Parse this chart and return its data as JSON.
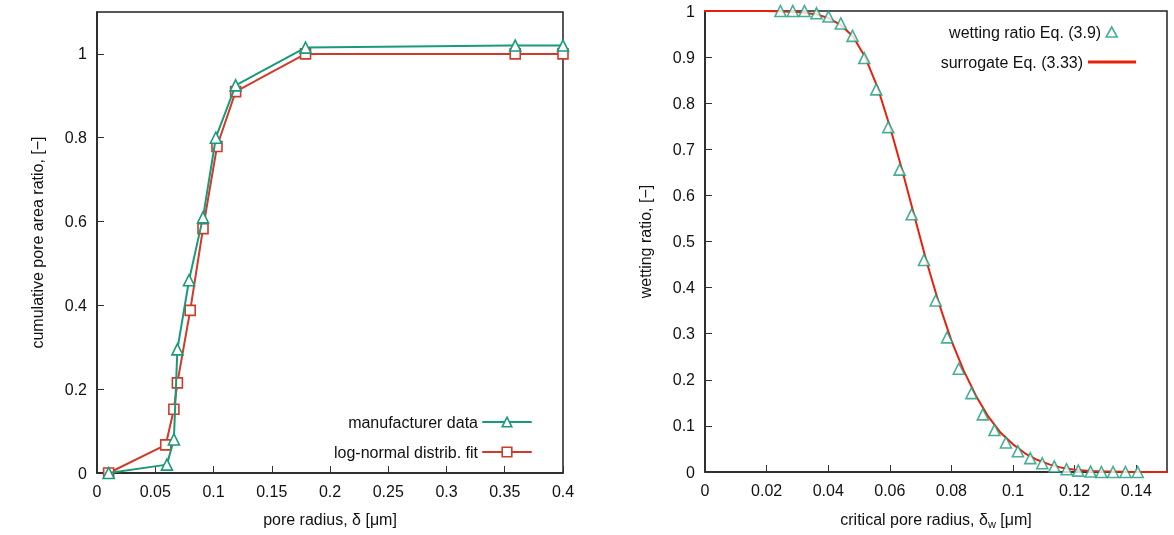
{
  "chart_data": [
    {
      "type": "line",
      "xlabel": "pore radius, δ [μm]",
      "ylabel": "cumulative pore area ratio, [−]",
      "xlim": [
        0,
        0.4
      ],
      "xticks": [
        0,
        0.05,
        0.1,
        0.15,
        0.2,
        0.25,
        0.3,
        0.35,
        0.4
      ],
      "ylim": [
        0,
        1.1
      ],
      "yticks": [
        0,
        0.2,
        0.4,
        0.6,
        0.8,
        1
      ],
      "grid": false,
      "legend": "bottom right",
      "series": [
        {
          "name": "manufacturer data",
          "color": "#1a9a7a",
          "marker": "triangle",
          "x": [
            0.01,
            0.06,
            0.066,
            0.069,
            0.079,
            0.091,
            0.102,
            0.119,
            0.179,
            0.359,
            0.4
          ],
          "values": [
            0,
            0.02,
            0.08,
            0.295,
            0.46,
            0.61,
            0.8,
            0.925,
            1.015,
            1.02,
            1.02
          ]
        },
        {
          "name": "log-normal distrib. fit",
          "color": "#d03a2a",
          "marker": "square",
          "x": [
            0.01,
            0.059,
            0.066,
            0.069,
            0.08,
            0.091,
            0.103,
            0.119,
            0.179,
            0.359,
            0.4
          ],
          "values": [
            0,
            0.067,
            0.152,
            0.215,
            0.388,
            0.583,
            0.779,
            0.91,
            1,
            1,
            1
          ]
        }
      ]
    },
    {
      "type": "scatter",
      "xlabel": "critical pore radius, δ$_{w}$ [μm]",
      "ylabel": "wetting ratio, [−]",
      "xlim": [
        0,
        0.15
      ],
      "xticks": [
        0,
        0.02,
        0.04,
        0.06,
        0.08,
        0.1,
        0.12,
        0.14
      ],
      "ylim": [
        0,
        1
      ],
      "yticks": [
        0,
        0.1,
        0.2,
        0.3,
        0.4,
        0.5,
        0.6,
        0.7,
        0.8,
        0.9,
        1
      ],
      "grid": false,
      "legend": "top right",
      "series": [
        {
          "name": "wetting ratio Eq. (3.9)",
          "color": "#1a9a7a",
          "marker": "triangle",
          "x": [
            0.0245,
            0.0285,
            0.0323,
            0.0362,
            0.0401,
            0.0441,
            0.0479,
            0.0517,
            0.0556,
            0.0595,
            0.0632,
            0.0671,
            0.0711,
            0.0749,
            0.0786,
            0.0824,
            0.0865,
            0.0902,
            0.094,
            0.0977,
            0.1016,
            0.1056,
            0.1095,
            0.1134,
            0.1174,
            0.1212,
            0.1252,
            0.1287,
            0.1325,
            0.1365,
            0.1405
          ],
          "values": [
            1,
            1,
            1,
            0.995,
            0.988,
            0.973,
            0.946,
            0.898,
            0.83,
            0.748,
            0.656,
            0.559,
            0.46,
            0.372,
            0.292,
            0.224,
            0.171,
            0.125,
            0.091,
            0.064,
            0.045,
            0.03,
            0.019,
            0.012,
            0.006,
            0.003,
            0.001,
            0,
            0,
            0,
            0
          ]
        },
        {
          "name": "surrogate Eq. (3.33)",
          "type": "line",
          "color": "#e8200c",
          "marker": "none",
          "x": [
            0,
            0.02,
            0.03,
            0.036,
            0.04,
            0.044,
            0.048,
            0.052,
            0.056,
            0.06,
            0.064,
            0.068,
            0.072,
            0.076,
            0.08,
            0.084,
            0.088,
            0.092,
            0.096,
            0.1,
            0.104,
            0.108,
            0.112,
            0.116,
            0.12,
            0.125,
            0.13,
            0.14,
            0.15
          ],
          "values": [
            1,
            1,
            0.998,
            0.993,
            0.985,
            0.97,
            0.945,
            0.9,
            0.835,
            0.75,
            0.655,
            0.555,
            0.455,
            0.365,
            0.285,
            0.22,
            0.165,
            0.12,
            0.085,
            0.06,
            0.04,
            0.026,
            0.016,
            0.009,
            0.005,
            0.002,
            0.001,
            0,
            0
          ]
        }
      ]
    }
  ]
}
